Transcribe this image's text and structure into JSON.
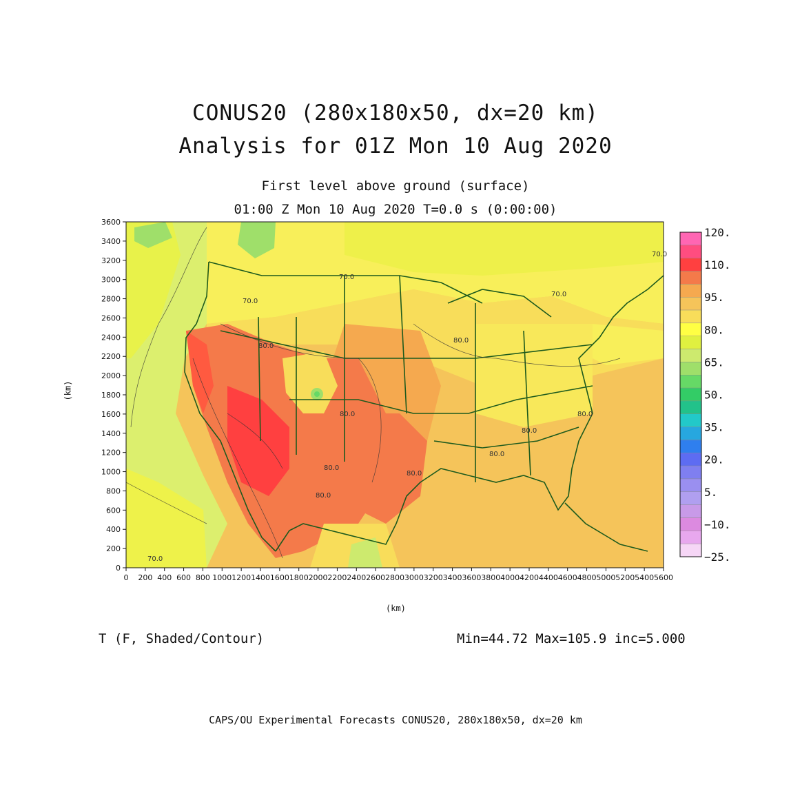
{
  "title": {
    "line1": "CONUS20 (280x180x50, dx=20 km)",
    "line2": "Analysis for 01Z Mon 10 Aug 2020"
  },
  "subtitle": {
    "line1": "First level above ground (surface)",
    "line2": "01:00 Z Mon 10 Aug 2020    T=0.0 s (0:00:00)"
  },
  "axes": {
    "xlabel": "(km)",
    "ylabel": "(km)",
    "x_ticks": [
      "0",
      "200",
      "400",
      "600",
      "800",
      "1000",
      "1200",
      "1400",
      "1600",
      "1800",
      "2000",
      "2200",
      "2400",
      "2600",
      "2800",
      "3000",
      "3200",
      "3400",
      "3600",
      "3800",
      "4000",
      "4200",
      "4400",
      "4600",
      "4800",
      "5000",
      "5200",
      "5400",
      "5600"
    ],
    "y_ticks": [
      "0",
      "200",
      "400",
      "600",
      "800",
      "1000",
      "1200",
      "1400",
      "1600",
      "1800",
      "2000",
      "2200",
      "2400",
      "2600",
      "2800",
      "3000",
      "3200",
      "3400",
      "3600"
    ],
    "xlim": [
      0,
      5600
    ],
    "ylim": [
      0,
      3600
    ]
  },
  "colorbar": {
    "labels": [
      "120.",
      "110.",
      "95.",
      "80.",
      "65.",
      "50.",
      "35.",
      "20.",
      "5.",
      "−10.",
      "−25."
    ],
    "colors": [
      "#ff66b3",
      "#ff4d80",
      "#ff4040",
      "#f47a4a",
      "#f5a94f",
      "#f5c45a",
      "#f8dd5a",
      "#ffff44",
      "#e0f040",
      "#cdea6e",
      "#9fdf6a",
      "#66d966",
      "#33cc66",
      "#22c28a",
      "#22c9c9",
      "#27a7df",
      "#2f7fee",
      "#5d6cf2",
      "#7f7ff0",
      "#9a8ff0",
      "#b09ff0",
      "#c89ae8",
      "#dc8ae0",
      "#e8a8ee",
      "#f6d6f6"
    ]
  },
  "contour_labels": [
    "70.0",
    "70.0",
    "70.0",
    "80.0",
    "80.0",
    "80.0",
    "80.0",
    "80.0",
    "80.0",
    "80.0",
    "80.0",
    "80.0",
    "70.0",
    "70.0"
  ],
  "variable": "T (F, Shaded/Contour)",
  "stats": "Min=44.72 Max=105.9 inc=5.000",
  "footer": "CAPS/OU Experimental Forecasts  CONUS20, 280x180x50, dx=20 km"
}
